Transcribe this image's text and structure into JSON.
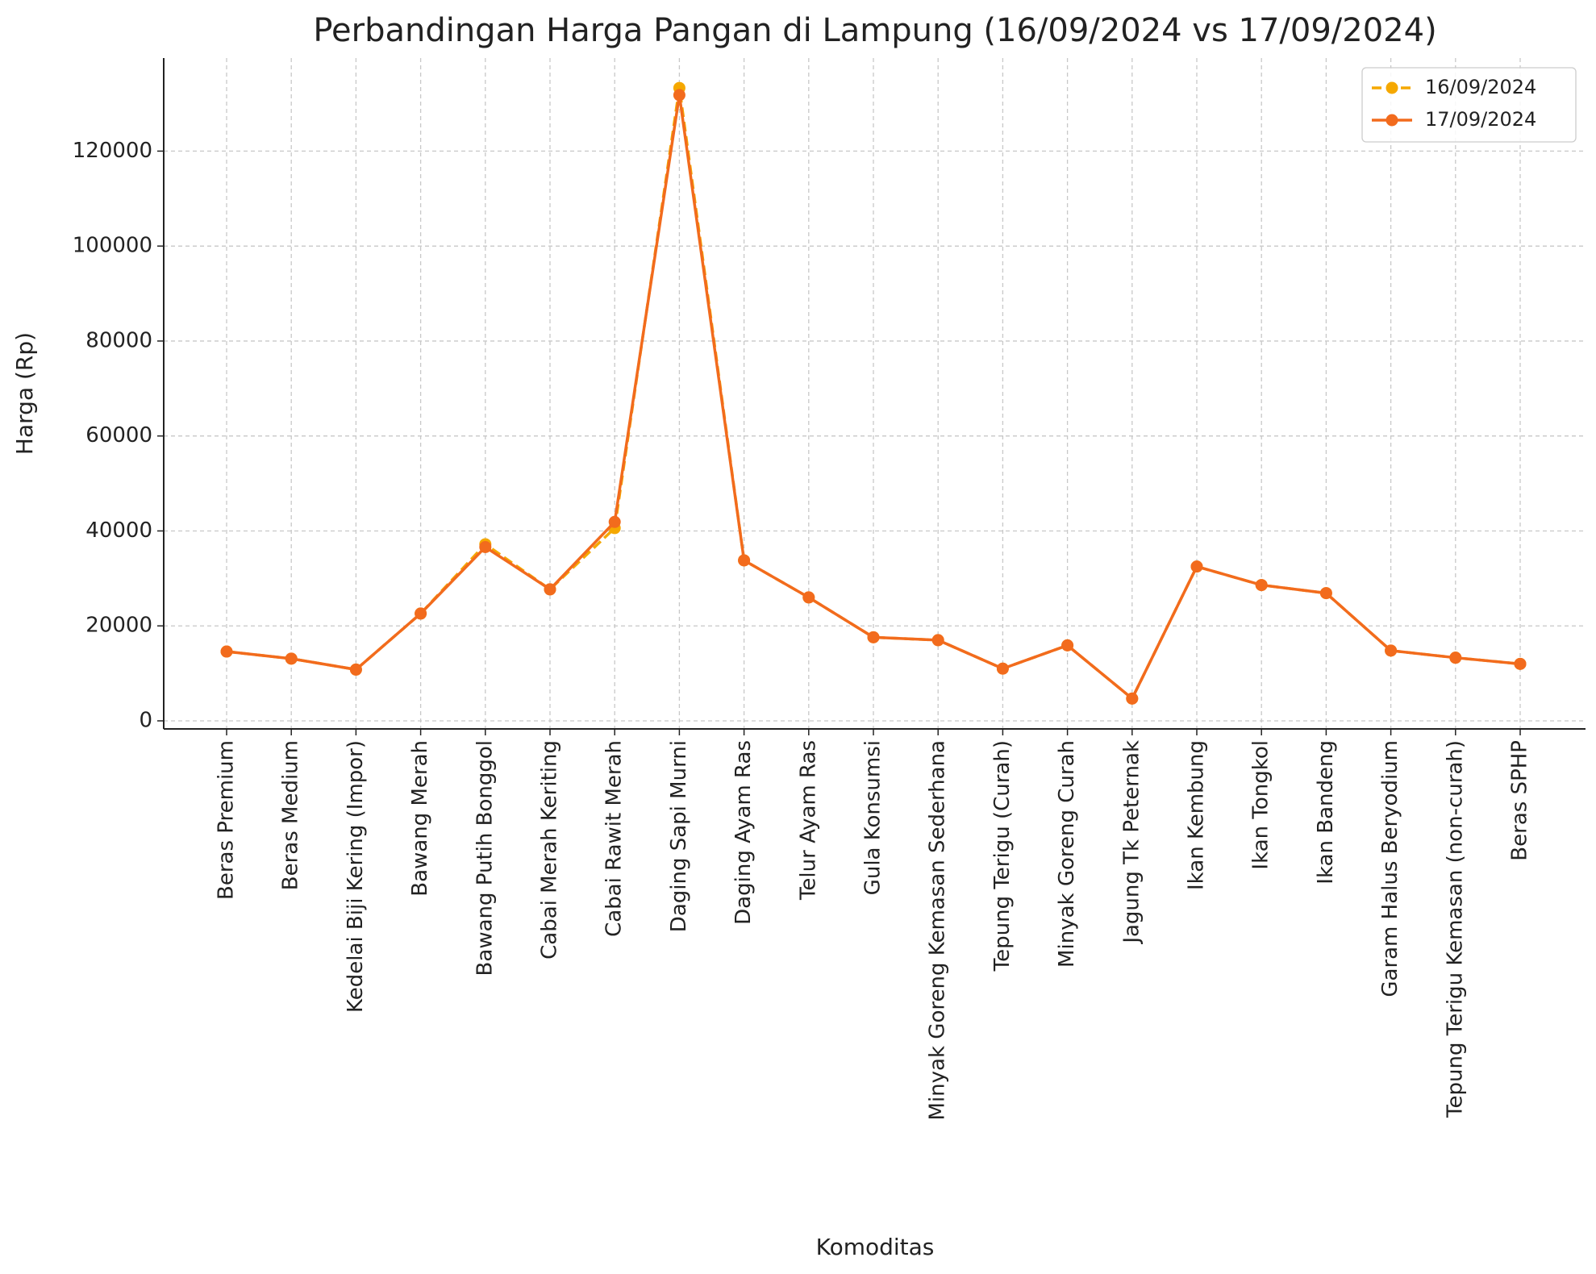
{
  "chart_data": {
    "type": "line",
    "title": "Perbandingan Harga Pangan di Lampung (16/09/2024 vs 17/09/2024)",
    "x_label": "Komoditas",
    "y_label": "Harga (Rp)",
    "categories": [
      "Beras Premium",
      "Beras Medium",
      "Kedelai Biji Kering (Impor)",
      "Bawang Merah",
      "Bawang Putih Bonggol",
      "Cabai Merah Keriting",
      "Cabai Rawit Merah",
      "Daging Sapi Murni",
      "Daging Ayam Ras",
      "Telur Ayam Ras",
      "Gula Konsumsi",
      "Minyak Goreng Kemasan Sederhana",
      "Tepung Terigu (Curah)",
      "Minyak Goreng Curah",
      "Jagung Tk Peternak",
      "Ikan Kembung",
      "Ikan Tongkol",
      "Ikan Bandeng",
      "Garam Halus Beryodium",
      "Tepung Terigu Kemasan (non-curah)",
      "Beras SPHP"
    ],
    "series": [
      {
        "name": "16/09/2024",
        "color": "#f5a800",
        "dashed": true,
        "values": [
          14600,
          13100,
          10800,
          22600,
          37200,
          27700,
          40600,
          133300,
          33800,
          26000,
          17600,
          17000,
          11000,
          15900,
          4700,
          32500,
          28600,
          26900,
          14800,
          13300,
          12000
        ]
      },
      {
        "name": "17/09/2024",
        "color": "#f26b1d",
        "dashed": false,
        "values": [
          14600,
          13100,
          10800,
          22600,
          36600,
          27700,
          41900,
          131800,
          33800,
          26000,
          17600,
          17000,
          11000,
          15900,
          4700,
          32500,
          28600,
          26900,
          14800,
          13300,
          12000
        ]
      }
    ],
    "ylim": [
      -1700,
      139600
    ],
    "yticks": [
      0,
      20000,
      40000,
      60000,
      80000,
      100000,
      120000
    ],
    "grid": true,
    "legend": "upper-right"
  }
}
